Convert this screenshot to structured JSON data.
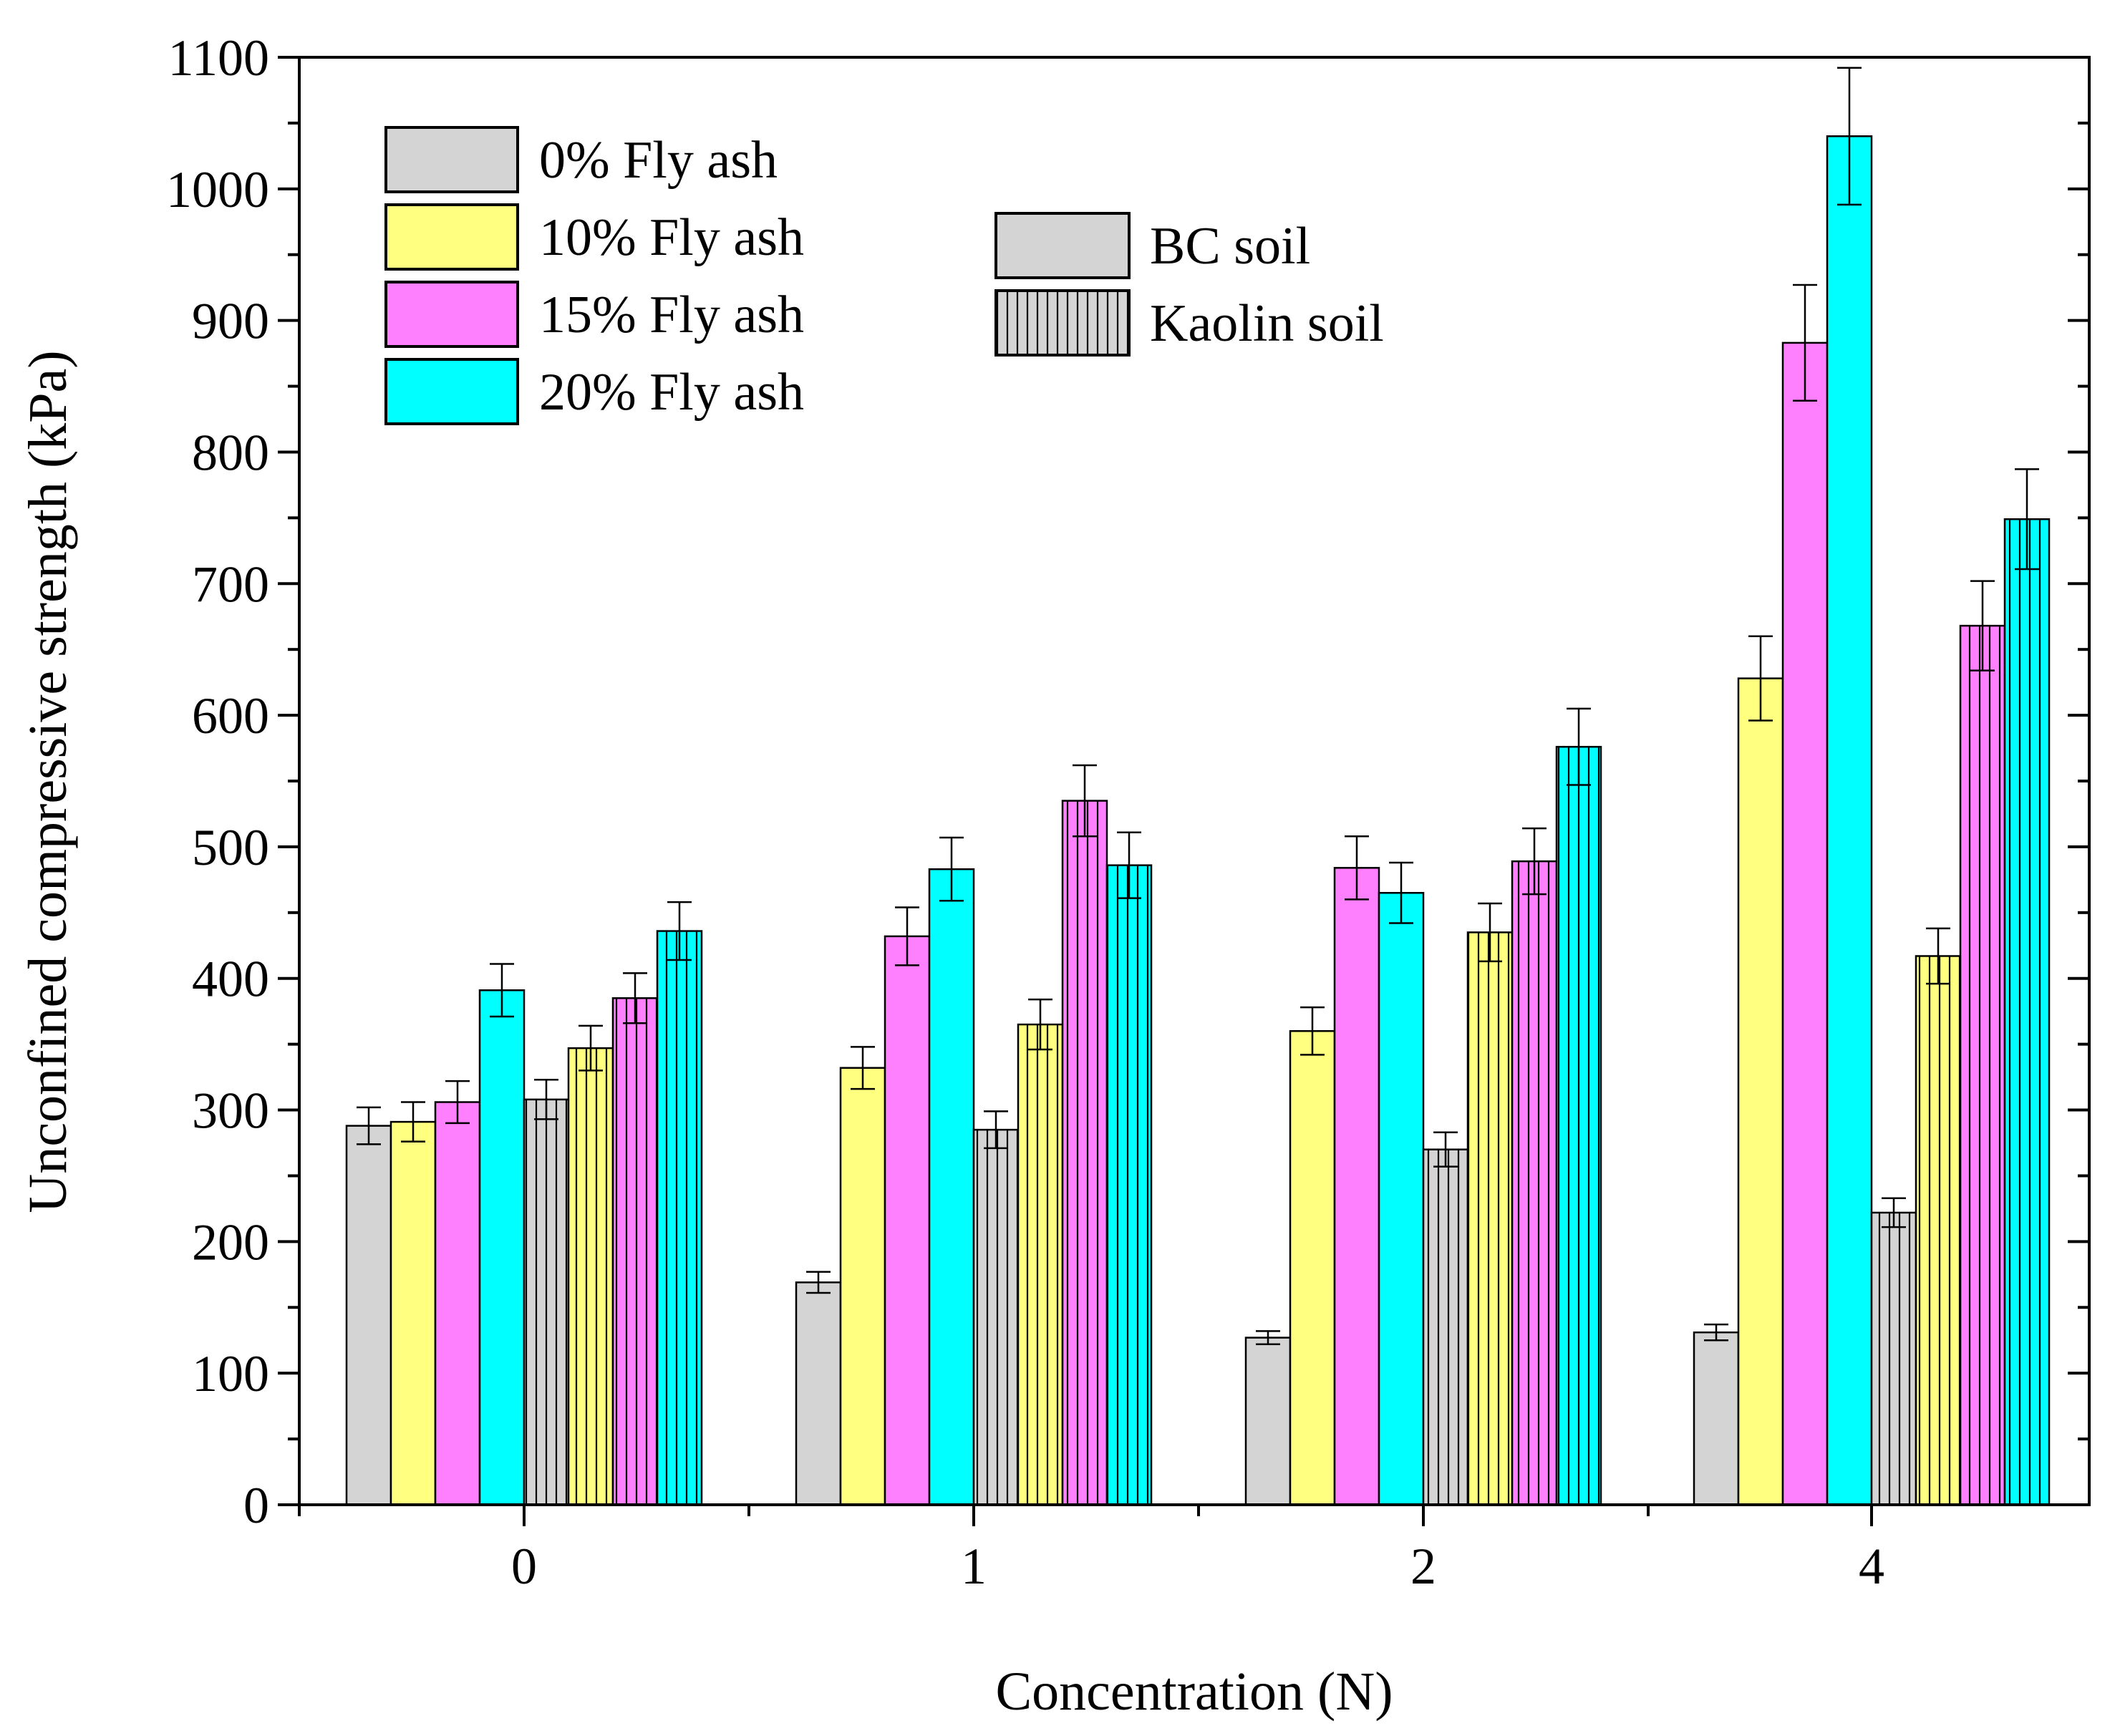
{
  "colors": {
    "fly0": "#d4d4d4",
    "fly10": "#ffff80",
    "fly15": "#ff80ff",
    "fly20": "#00ffff",
    "axis": "#000000",
    "background": "#ffffff"
  },
  "chart_data": {
    "type": "bar",
    "title": "",
    "xlabel": "Concentration (N)",
    "ylabel": "Unconfined compressive strength (kPa)",
    "ylim": [
      0,
      1100
    ],
    "yticks": [
      "0",
      "100",
      "200",
      "300",
      "400",
      "500",
      "600",
      "700",
      "800",
      "900",
      "1000",
      "1100"
    ],
    "categories": [
      "0",
      "1",
      "2",
      "4"
    ],
    "grid": false,
    "legend_fly_ash": [
      {
        "label": "0% Fly ash",
        "color_key": "fly0"
      },
      {
        "label": "10% Fly ash",
        "color_key": "fly10"
      },
      {
        "label": "15% Fly ash",
        "color_key": "fly15"
      },
      {
        "label": "20% Fly ash",
        "color_key": "fly20"
      }
    ],
    "legend_soil": [
      {
        "label": "BC soil",
        "pattern": "solid"
      },
      {
        "label": "Kaolin soil",
        "pattern": "vertical-hatch"
      }
    ],
    "series": [
      {
        "name": "BC soil 0% Fly ash",
        "soil": "BC soil",
        "color_key": "fly0",
        "values": [
          288,
          169,
          127,
          131
        ],
        "errors": [
          14,
          8,
          5,
          6
        ]
      },
      {
        "name": "BC soil 10% Fly ash",
        "soil": "BC soil",
        "color_key": "fly10",
        "values": [
          291,
          332,
          360,
          628
        ],
        "errors": [
          15,
          16,
          18,
          32
        ]
      },
      {
        "name": "BC soil 15% Fly ash",
        "soil": "BC soil",
        "color_key": "fly15",
        "values": [
          306,
          432,
          484,
          883
        ],
        "errors": [
          16,
          22,
          24,
          44
        ]
      },
      {
        "name": "BC soil 20% Fly ash",
        "soil": "BC soil",
        "color_key": "fly20",
        "values": [
          391,
          483,
          465,
          1040
        ],
        "errors": [
          20,
          24,
          23,
          52
        ]
      },
      {
        "name": "Kaolin soil 0% Fly ash",
        "soil": "Kaolin soil",
        "color_key": "fly0",
        "values": [
          308,
          285,
          270,
          222
        ],
        "errors": [
          15,
          14,
          13,
          11
        ]
      },
      {
        "name": "Kaolin soil 10% Fly ash",
        "soil": "Kaolin soil",
        "color_key": "fly10",
        "values": [
          347,
          365,
          435,
          417
        ],
        "errors": [
          17,
          19,
          22,
          21
        ]
      },
      {
        "name": "Kaolin soil 15% Fly ash",
        "soil": "Kaolin soil",
        "color_key": "fly15",
        "values": [
          385,
          535,
          489,
          668
        ],
        "errors": [
          19,
          27,
          25,
          34
        ]
      },
      {
        "name": "Kaolin soil 20% Fly ash",
        "soil": "Kaolin soil",
        "color_key": "fly20",
        "values": [
          436,
          486,
          576,
          749
        ],
        "errors": [
          22,
          25,
          29,
          38
        ]
      }
    ]
  }
}
